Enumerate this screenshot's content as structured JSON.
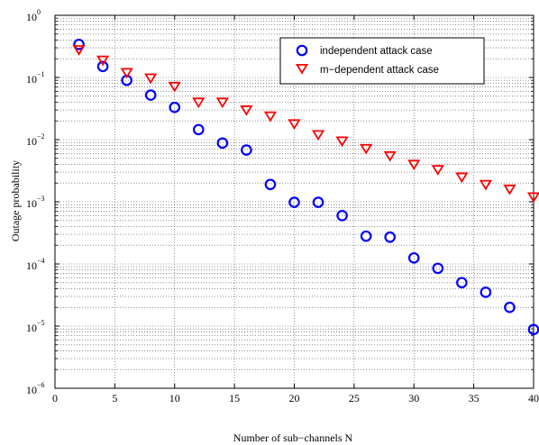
{
  "chart_data": {
    "type": "scatter",
    "title": "",
    "xlabel": "Number of sub−channels N",
    "ylabel": "Outage probability",
    "xlim": [
      0,
      40
    ],
    "ylim": [
      1e-06,
      1
    ],
    "yscale": "log",
    "grid": true,
    "legend_position": "top-right",
    "x_ticks": [
      "0",
      "5",
      "10",
      "15",
      "20",
      "25",
      "30",
      "35",
      "40"
    ],
    "y_tick_exponents": [
      "−6",
      "−5",
      "−4",
      "−3",
      "−2",
      "−1",
      "0"
    ],
    "x": [
      2,
      4,
      6,
      8,
      10,
      12,
      14,
      16,
      18,
      20,
      22,
      24,
      26,
      28,
      30,
      32,
      34,
      36,
      38,
      40
    ],
    "series": [
      {
        "name": "independent attack case",
        "marker": "circle",
        "color": "#0000ff",
        "values": [
          0.34,
          0.15,
          0.09,
          0.052,
          0.033,
          0.0145,
          0.0088,
          0.0068,
          0.0019,
          0.00098,
          0.00098,
          0.0006,
          0.00028,
          0.00027,
          0.000125,
          8.5e-05,
          5e-05,
          3.5e-05,
          2e-05,
          8.8e-06
        ]
      },
      {
        "name": "m−dependent attack case",
        "marker": "triangle-down",
        "color": "#ff0000",
        "values": [
          0.28,
          0.19,
          0.12,
          0.098,
          0.072,
          0.04,
          0.04,
          0.03,
          0.024,
          0.018,
          0.012,
          0.0095,
          0.0072,
          0.0055,
          0.004,
          0.0033,
          0.0025,
          0.0019,
          0.0016,
          0.0012
        ]
      }
    ]
  }
}
